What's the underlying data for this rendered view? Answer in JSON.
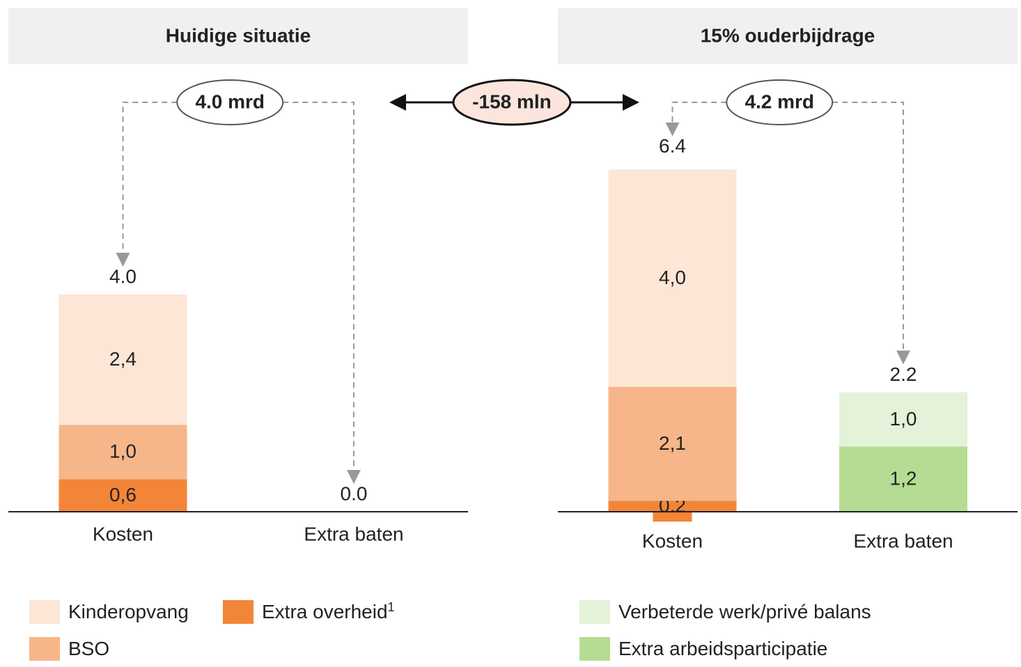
{
  "difference": "-158 mln",
  "chart_data": [
    {
      "type": "bar",
      "stacked": true,
      "title": "Huidige situatie",
      "annotation": "4.0 mrd",
      "categories": [
        "Kosten",
        "Extra baten"
      ],
      "series": [
        {
          "name": "Extra overheid",
          "footnote": "1",
          "color": "#f28538",
          "values": [
            0.6,
            null
          ],
          "value_labels": [
            "0,6",
            null
          ]
        },
        {
          "name": "BSO",
          "color": "#f6b68a",
          "values": [
            1.0,
            null
          ],
          "value_labels": [
            "1,0",
            null
          ]
        },
        {
          "name": "Kinderopvang",
          "color": "#fde6d6",
          "values": [
            2.4,
            null
          ],
          "value_labels": [
            "2,4",
            null
          ]
        }
      ],
      "totals": [
        4.0,
        0
      ],
      "total_labels": [
        "4.0",
        "0.0"
      ],
      "ylim": [
        0,
        7
      ]
    },
    {
      "type": "bar",
      "stacked": true,
      "title": "15% ouderbijdrage",
      "annotation": "4.2 mrd",
      "categories": [
        "Kosten",
        "Extra baten"
      ],
      "series": [
        {
          "color": "#f28538",
          "values": [
            0.2,
            null
          ],
          "value_labels": [
            "0.2",
            null
          ]
        },
        {
          "color": "#f6b68a",
          "values": [
            2.1,
            null
          ],
          "value_labels": [
            "2,1",
            null
          ]
        },
        {
          "color": "#fde6d6",
          "values": [
            4.0,
            null
          ],
          "value_labels": [
            "4,0",
            null
          ]
        },
        {
          "name": "Extra arbeidsparticipatie",
          "color": "#b5dc92",
          "values": [
            null,
            1.2
          ],
          "value_labels": [
            null,
            "1,2"
          ]
        },
        {
          "name": "Verbeterde werk/privé balans",
          "color": "#e3f2d9",
          "values": [
            null,
            1.0
          ],
          "value_labels": [
            null,
            "1,0"
          ]
        }
      ],
      "totals": [
        6.4,
        2.2
      ],
      "total_labels": [
        "6.4",
        "2.2"
      ],
      "ylim": [
        0,
        7
      ]
    }
  ]
}
